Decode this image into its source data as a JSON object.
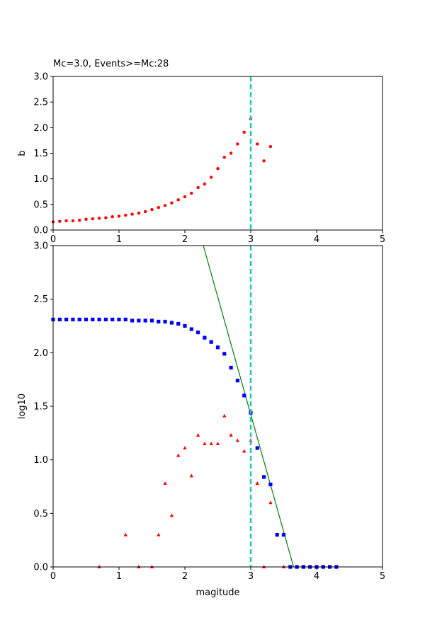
{
  "chart_data": [
    {
      "type": "scatter",
      "title": "Mc=3.0, Events>=Mc:28",
      "xlabel": "",
      "ylabel": "b",
      "xlim": [
        0,
        5
      ],
      "ylim": [
        0,
        3.0
      ],
      "xticks": [
        "0",
        "1",
        "2",
        "3",
        "4",
        "5"
      ],
      "yticks": [
        "0.0",
        "0.5",
        "1.0",
        "1.5",
        "2.0",
        "2.5",
        "3.0"
      ],
      "grid": false,
      "mc_line": {
        "x": 3.0,
        "color": "#1ec8b4",
        "style": "dashed"
      },
      "series": [
        {
          "marker": "circle",
          "color": "#ff0000",
          "points": [
            [
              0.0,
              0.16
            ],
            [
              0.1,
              0.17
            ],
            [
              0.2,
              0.18
            ],
            [
              0.3,
              0.18
            ],
            [
              0.4,
              0.19
            ],
            [
              0.5,
              0.21
            ],
            [
              0.6,
              0.22
            ],
            [
              0.7,
              0.23
            ],
            [
              0.8,
              0.24
            ],
            [
              0.9,
              0.26
            ],
            [
              1.0,
              0.27
            ],
            [
              1.1,
              0.29
            ],
            [
              1.2,
              0.31
            ],
            [
              1.3,
              0.33
            ],
            [
              1.4,
              0.36
            ],
            [
              1.5,
              0.4
            ],
            [
              1.6,
              0.44
            ],
            [
              1.7,
              0.48
            ],
            [
              1.8,
              0.53
            ],
            [
              1.9,
              0.59
            ],
            [
              2.0,
              0.65
            ],
            [
              2.1,
              0.72
            ],
            [
              2.2,
              0.83
            ],
            [
              2.3,
              0.9
            ],
            [
              2.4,
              1.03
            ],
            [
              2.5,
              1.2
            ],
            [
              2.6,
              1.42
            ],
            [
              2.7,
              1.5
            ],
            [
              2.8,
              1.68
            ],
            [
              2.9,
              1.91
            ],
            [
              3.0,
              2.17
            ],
            [
              3.1,
              1.68
            ],
            [
              3.2,
              1.35
            ],
            [
              3.3,
              1.63
            ]
          ]
        }
      ]
    },
    {
      "type": "scatter",
      "title": "",
      "xlabel": "magitude",
      "ylabel": "log10",
      "xlim": [
        0,
        5
      ],
      "ylim": [
        0,
        3.0
      ],
      "xticks": [
        "0",
        "1",
        "2",
        "3",
        "4",
        "5"
      ],
      "yticks": [
        "0.0",
        "0.5",
        "1.0",
        "1.5",
        "2.0",
        "2.5",
        "3.0"
      ],
      "grid": false,
      "mc_line": {
        "x": 3.0,
        "color": "#1ec8b4",
        "style": "dashed"
      },
      "fit_line": {
        "color": "#008000",
        "points": [
          [
            2.28,
            3.0
          ],
          [
            3.65,
            0.0
          ]
        ]
      },
      "series": [
        {
          "name_hidden": "cumulative",
          "marker": "square",
          "color": "#0000ff",
          "points": [
            [
              0.0,
              2.31
            ],
            [
              0.1,
              2.31
            ],
            [
              0.2,
              2.31
            ],
            [
              0.3,
              2.31
            ],
            [
              0.4,
              2.31
            ],
            [
              0.5,
              2.31
            ],
            [
              0.6,
              2.31
            ],
            [
              0.7,
              2.31
            ],
            [
              0.8,
              2.31
            ],
            [
              0.9,
              2.31
            ],
            [
              1.0,
              2.31
            ],
            [
              1.1,
              2.31
            ],
            [
              1.2,
              2.3
            ],
            [
              1.3,
              2.3
            ],
            [
              1.4,
              2.3
            ],
            [
              1.5,
              2.3
            ],
            [
              1.6,
              2.29
            ],
            [
              1.7,
              2.29
            ],
            [
              1.8,
              2.28
            ],
            [
              1.9,
              2.27
            ],
            [
              2.0,
              2.25
            ],
            [
              2.1,
              2.22
            ],
            [
              2.2,
              2.19
            ],
            [
              2.3,
              2.14
            ],
            [
              2.4,
              2.1
            ],
            [
              2.5,
              2.05
            ],
            [
              2.6,
              1.99
            ],
            [
              2.7,
              1.86
            ],
            [
              2.8,
              1.74
            ],
            [
              2.9,
              1.6
            ],
            [
              3.0,
              1.44
            ],
            [
              3.1,
              1.11
            ],
            [
              3.2,
              0.84
            ],
            [
              3.3,
              0.77
            ],
            [
              3.4,
              0.3
            ],
            [
              3.5,
              0.3
            ],
            [
              3.6,
              0.0
            ],
            [
              3.7,
              0.0
            ],
            [
              3.8,
              0.0
            ],
            [
              3.9,
              0.0
            ],
            [
              4.0,
              0.0
            ],
            [
              4.1,
              0.0
            ],
            [
              4.2,
              0.0
            ],
            [
              4.3,
              0.0
            ]
          ]
        },
        {
          "name_hidden": "non-cumulative",
          "marker": "triangle",
          "color": "#ff0000",
          "points": [
            [
              0.7,
              0.0
            ],
            [
              1.1,
              0.3
            ],
            [
              1.3,
              0.0
            ],
            [
              1.5,
              0.0
            ],
            [
              1.6,
              0.3
            ],
            [
              1.7,
              0.78
            ],
            [
              1.8,
              0.48
            ],
            [
              1.9,
              1.04
            ],
            [
              2.0,
              1.11
            ],
            [
              2.1,
              0.85
            ],
            [
              2.2,
              1.23
            ],
            [
              2.3,
              1.15
            ],
            [
              2.4,
              1.15
            ],
            [
              2.5,
              1.15
            ],
            [
              2.6,
              1.41
            ],
            [
              2.7,
              1.23
            ],
            [
              2.8,
              1.18
            ],
            [
              2.9,
              1.08
            ],
            [
              3.0,
              1.18
            ],
            [
              3.1,
              0.78
            ],
            [
              3.2,
              0.0
            ],
            [
              3.3,
              0.6
            ],
            [
              3.5,
              0.0
            ]
          ]
        }
      ]
    }
  ]
}
